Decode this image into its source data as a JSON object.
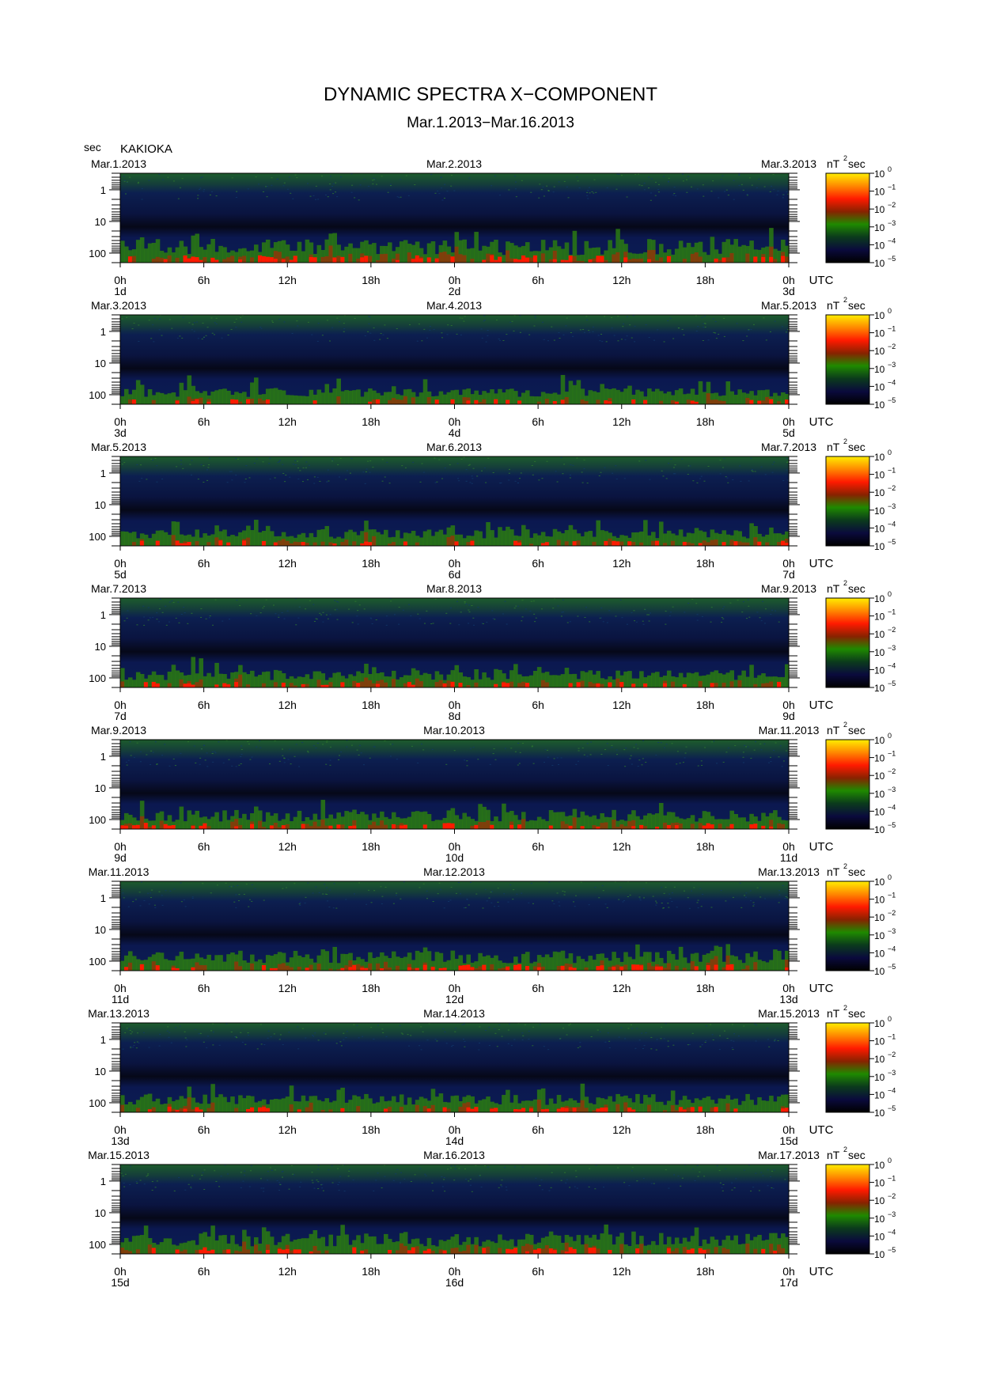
{
  "title": "DYNAMIC SPECTRA X−COMPONENT",
  "subtitle": "Mar.1.2013−Mar.16.2013",
  "station": "KAKIOKA",
  "y_unit": "sec",
  "colorbar": {
    "unit_base": "nT",
    "unit_exp": "2",
    "unit_tail": "sec",
    "tick_base": "10",
    "tick_exps": [
      "0",
      "−1",
      "−2",
      "−3",
      "−4",
      "−5"
    ],
    "colors": [
      "#ffee00",
      "#ff8800",
      "#ff1a00",
      "#882200",
      "#1f8a00",
      "#0b3a1c",
      "#0a0a3c",
      "#000000"
    ]
  },
  "x_tick_labels": [
    "0h",
    "6h",
    "12h",
    "18h",
    "0h",
    "6h",
    "12h",
    "18h",
    "0h"
  ],
  "utc_label": "UTC",
  "chart_data": {
    "type": "heatmap",
    "x_range_hours": [
      0,
      48
    ],
    "ylabel": "sec",
    "y_scale": "log",
    "y_range_sec": [
      0.3,
      200
    ],
    "y_tick_labels": [
      "1",
      "10",
      "100"
    ],
    "color_scale": "log",
    "color_range_nT2sec": [
      1e-05,
      1
    ],
    "panels": [
      {
        "dates": [
          "Mar.1.2013",
          "Mar.2.2013",
          "Mar.3.2013"
        ],
        "days": [
          "1d",
          "2d",
          "3d"
        ],
        "activity": 0.95
      },
      {
        "dates": [
          "Mar.3.2013",
          "Mar.4.2013",
          "Mar.5.2013"
        ],
        "days": [
          "3d",
          "4d",
          "5d"
        ],
        "activity": 0.5
      },
      {
        "dates": [
          "Mar.5.2013",
          "Mar.6.2013",
          "Mar.7.2013"
        ],
        "days": [
          "5d",
          "6d",
          "7d"
        ],
        "activity": 0.55
      },
      {
        "dates": [
          "Mar.7.2013",
          "Mar.8.2013",
          "Mar.9.2013"
        ],
        "days": [
          "7d",
          "8d",
          "9d"
        ],
        "activity": 0.6
      },
      {
        "dates": [
          "Mar.9.2013",
          "Mar.10.2013",
          "Mar.11.2013"
        ],
        "days": [
          "9d",
          "10d",
          "11d"
        ],
        "activity": 0.7
      },
      {
        "dates": [
          "Mar.11.2013",
          "Mar.12.2013",
          "Mar.13.2013"
        ],
        "days": [
          "11d",
          "12d",
          "13d"
        ],
        "activity": 0.75
      },
      {
        "dates": [
          "Mar.13.2013",
          "Mar.14.2013",
          "Mar.15.2013"
        ],
        "days": [
          "13d",
          "14d",
          "15d"
        ],
        "activity": 0.65
      },
      {
        "dates": [
          "Mar.15.2013",
          "Mar.16.2013",
          "Mar.17.2013"
        ],
        "days": [
          "15d",
          "16d",
          "17d"
        ],
        "activity": 0.8
      }
    ]
  }
}
